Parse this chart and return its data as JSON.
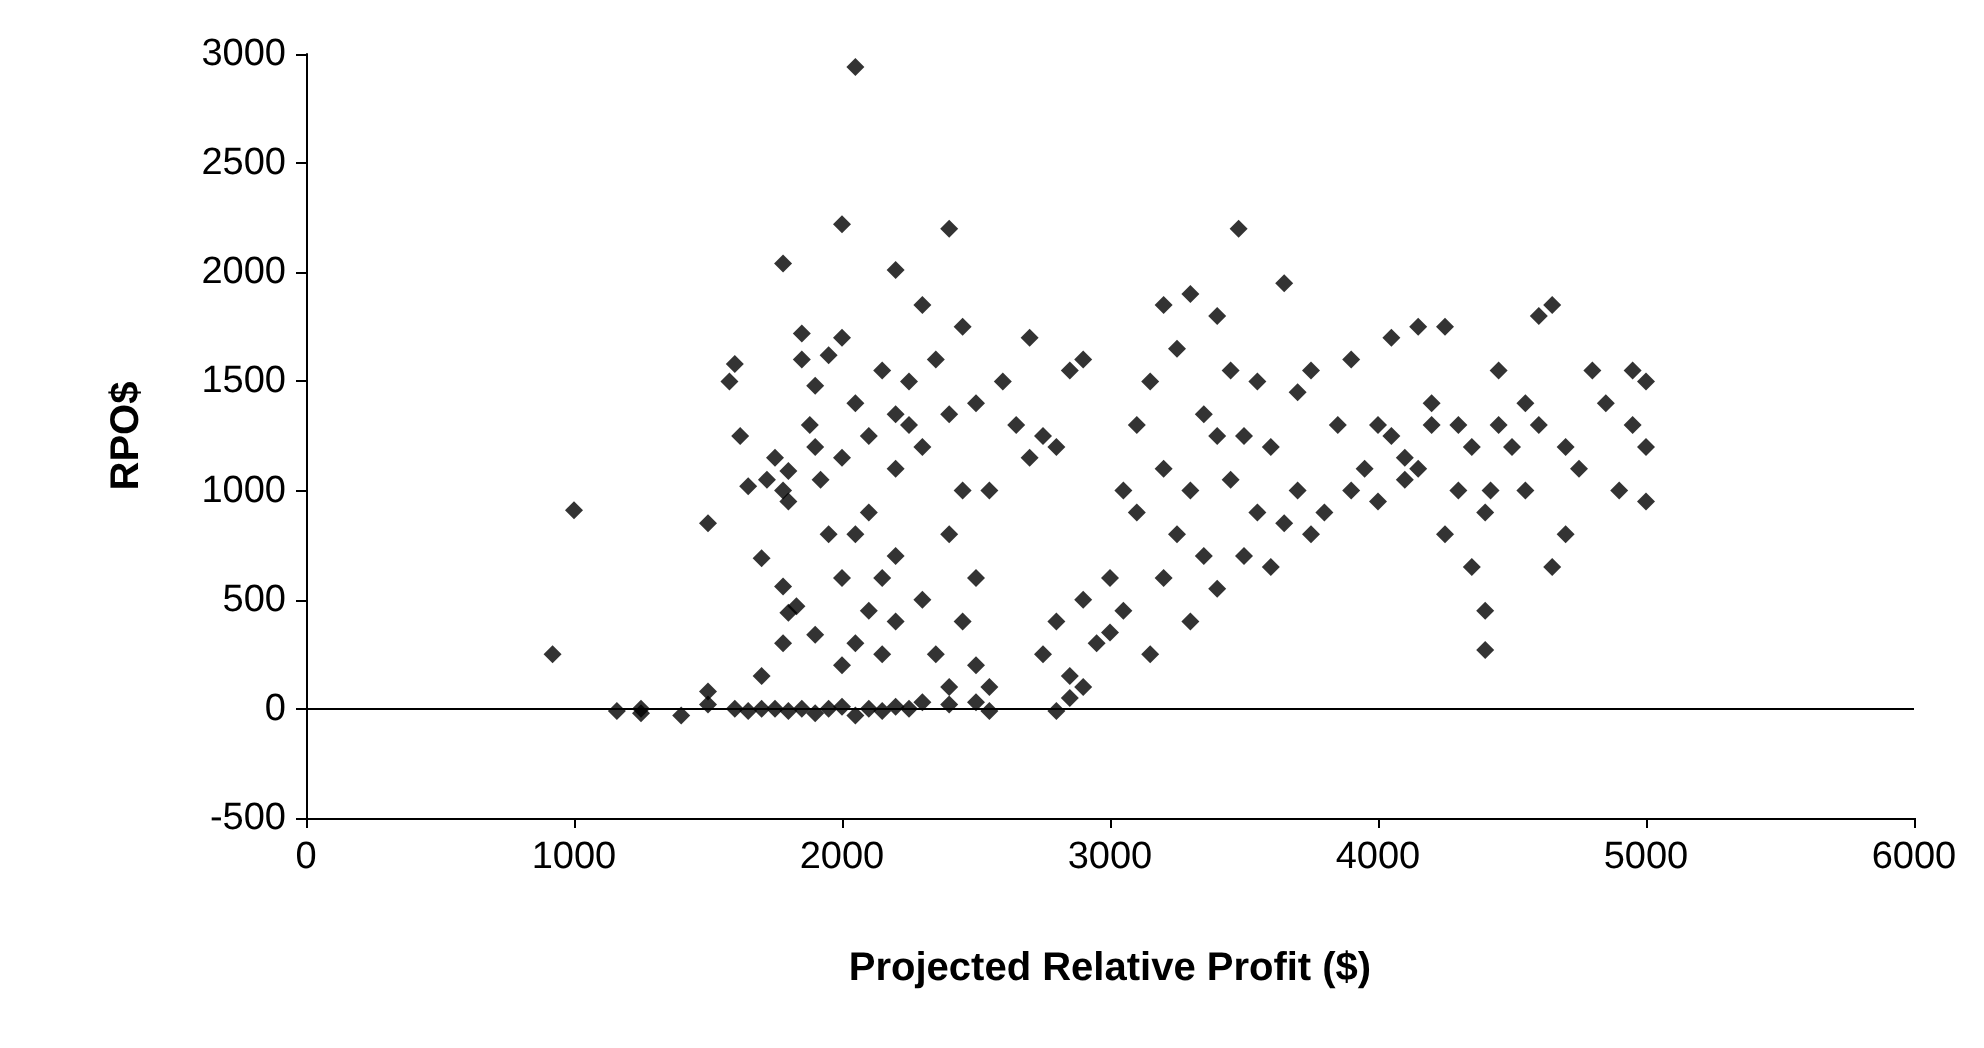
{
  "chart_data": {
    "type": "scatter",
    "xlabel": "Projected Relative Profit ($)",
    "ylabel": "RPO$",
    "marker": "diamond",
    "grid": false,
    "xlim": [
      0,
      6000
    ],
    "xticks": [
      0,
      1000,
      2000,
      3000,
      4000,
      5000,
      6000
    ],
    "ylim": [
      -500,
      3000
    ],
    "yticks": [
      -500,
      0,
      500,
      1000,
      1500,
      2000,
      2500,
      3000
    ],
    "ref_lines": [
      {
        "axis": "y",
        "value": 0,
        "color": "#000000"
      }
    ],
    "series": [
      {
        "color": "#000000",
        "x": [
          920,
          1000,
          2050,
          2000,
          2400,
          3480,
          1780,
          2200,
          1160,
          1250,
          1250,
          1400,
          1500,
          1500,
          1600,
          1650,
          1700,
          1750,
          1800,
          1850,
          1900,
          1950,
          2000,
          2050,
          2100,
          2150,
          2200,
          2250,
          2300,
          2400,
          2500,
          2550,
          2800,
          2850,
          1500,
          1580,
          1600,
          1620,
          1650,
          1700,
          1720,
          1750,
          1780,
          1800,
          1850,
          1850,
          1880,
          1900,
          1800,
          1780,
          1800,
          1830,
          1900,
          1780,
          1700,
          1900,
          1950,
          1920,
          1950,
          2000,
          2000,
          2050,
          2100,
          2100,
          2150,
          2200,
          2250,
          2250,
          2300,
          2300,
          2350,
          2400,
          2400,
          2450,
          2450,
          2500,
          2500,
          2550,
          2600,
          2650,
          2700,
          2700,
          2750,
          2800,
          2000,
          2050,
          2100,
          2150,
          2200,
          2300,
          2350,
          2400,
          2450,
          2500,
          2550,
          2200,
          2000,
          2050,
          2150,
          2200,
          2750,
          2800,
          2850,
          2900,
          2900,
          2950,
          3000,
          3000,
          3050,
          3100,
          3150,
          3200,
          3200,
          3250,
          3300,
          3300,
          3350,
          3350,
          3400,
          3400,
          3450,
          3450,
          3500,
          3500,
          3550,
          3550,
          3600,
          3600,
          3650,
          3650,
          3700,
          3700,
          3750,
          3750,
          3800,
          3850,
          3900,
          3900,
          3950,
          4000,
          4000,
          3300,
          3200,
          3050,
          2900,
          2850,
          3100,
          3150,
          3400,
          3250,
          4050,
          4100,
          4150,
          4200,
          4250,
          4250,
          4300,
          4300,
          4350,
          4350,
          4400,
          4400,
          4400,
          4420,
          4450,
          4450,
          4500,
          4550,
          4600,
          4650,
          4650,
          4700,
          4700,
          4750,
          4800,
          4850,
          4900,
          4950,
          5000,
          5000,
          5000,
          4950,
          4550,
          4600,
          4200,
          4150,
          4100,
          4050
        ],
        "values": [
          250,
          910,
          2940,
          2220,
          2200,
          2200,
          2040,
          2010,
          -10,
          -20,
          0,
          -30,
          20,
          80,
          0,
          -10,
          0,
          0,
          -10,
          0,
          -20,
          0,
          10,
          -30,
          0,
          -10,
          10,
          0,
          30,
          20,
          30,
          -10,
          -10,
          50,
          850,
          1500,
          1580,
          1250,
          1020,
          690,
          1050,
          1150,
          1000,
          1090,
          1720,
          1600,
          1300,
          1200,
          950,
          560,
          440,
          470,
          340,
          300,
          150,
          1480,
          1620,
          1050,
          800,
          1150,
          1700,
          1400,
          1250,
          900,
          600,
          1100,
          1500,
          1300,
          1850,
          1200,
          1600,
          1350,
          800,
          1000,
          1750,
          1400,
          600,
          1000,
          1500,
          1300,
          1700,
          1150,
          1250,
          1200,
          600,
          300,
          450,
          250,
          700,
          500,
          250,
          100,
          400,
          200,
          100,
          400,
          200,
          800,
          1550,
          1350,
          250,
          400,
          150,
          100,
          500,
          300,
          350,
          600,
          450,
          900,
          250,
          600,
          1100,
          800,
          400,
          1000,
          700,
          1350,
          550,
          1800,
          1050,
          1550,
          700,
          1250,
          900,
          1500,
          650,
          1200,
          850,
          1950,
          1000,
          1450,
          800,
          1550,
          900,
          1300,
          1000,
          1600,
          1100,
          950,
          1300,
          1900,
          1850,
          1000,
          1600,
          1550,
          1300,
          1500,
          1250,
          1650,
          1700,
          1150,
          1750,
          1400,
          1750,
          800,
          1300,
          1000,
          1200,
          650,
          900,
          450,
          270,
          1000,
          1550,
          1300,
          1200,
          1000,
          1300,
          650,
          1850,
          1200,
          800,
          1100,
          1550,
          1400,
          1000,
          1550,
          1500,
          1200,
          950,
          1300,
          1400,
          1800,
          1300,
          1100,
          1050,
          1250
        ]
      }
    ]
  }
}
